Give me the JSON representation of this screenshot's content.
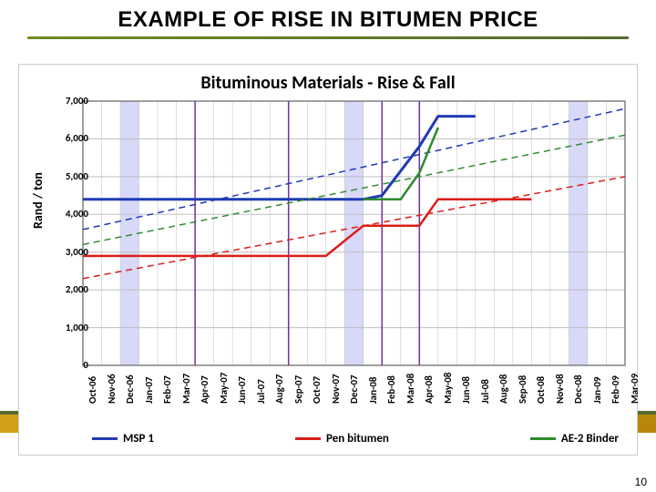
{
  "slide": {
    "title": "EXAMPLE OF RISE IN BITUMEN PRICE",
    "page_number": "10"
  },
  "chart": {
    "type": "line",
    "title": "Bituminous Materials - Rise & Fall",
    "title_fontsize": 20,
    "ylabel": "Rand / ton",
    "label_fontsize": 14,
    "tick_fontsize": 11,
    "background_color": "#ffffff",
    "grid_color": "#bfbfbf",
    "axis_color": "#808080",
    "ylim": [
      0,
      7000
    ],
    "ytick_step": 1000,
    "yticks": [
      "0",
      "1,000",
      "2,000",
      "3,000",
      "4,000",
      "5,000",
      "6,000",
      "7,000"
    ],
    "x_categories": [
      "Oct-06",
      "Nov-06",
      "Dec-06",
      "Jan-07",
      "Feb-07",
      "Mar-07",
      "Apr-07",
      "May-07",
      "Jun-07",
      "Jul-07",
      "Aug-07",
      "Sep-07",
      "Oct-07",
      "Nov-07",
      "Dec-07",
      "Jan-08",
      "Feb-08",
      "Mar-08",
      "Apr-08",
      "May-08",
      "Jun-08",
      "Jul-08",
      "Aug-08",
      "Sep-08",
      "Oct-08",
      "Nov-08",
      "Dec-08",
      "Jan-09",
      "Feb-09",
      "Mar-09"
    ],
    "vband_color": "#d8d8f8",
    "vbands": [
      [
        2,
        3
      ],
      [
        14,
        15
      ],
      [
        26,
        27
      ]
    ],
    "vlines": {
      "color": "#7030a0",
      "width": 1.5,
      "positions": [
        6,
        11,
        16,
        18
      ]
    },
    "series": [
      {
        "name": "MSP 1",
        "color": "#1f3bb3",
        "solid_width": 3,
        "dash_width": 1.5,
        "solid": [
          [
            0,
            4400
          ],
          [
            15,
            4400
          ],
          [
            16,
            4500
          ],
          [
            18,
            5800
          ],
          [
            19,
            6600
          ],
          [
            21,
            6600
          ]
        ],
        "dash": [
          [
            0,
            3600
          ],
          [
            29,
            6800
          ]
        ]
      },
      {
        "name": "Pen bitumen",
        "color": "#d91e18",
        "solid_width": 2.5,
        "dash_width": 1.5,
        "solid": [
          [
            0,
            2900
          ],
          [
            13,
            2900
          ],
          [
            15,
            3700
          ],
          [
            18,
            3700
          ],
          [
            19,
            4400
          ],
          [
            24,
            4400
          ]
        ],
        "dash": [
          [
            0,
            2300
          ],
          [
            29,
            5000
          ]
        ]
      },
      {
        "name": "AE-2 Binder",
        "color": "#2e8b2e",
        "solid_width": 2.5,
        "dash_width": 1.5,
        "solid": [
          [
            15,
            4400
          ],
          [
            17,
            4400
          ],
          [
            18,
            5100
          ],
          [
            19,
            6300
          ]
        ],
        "dash": [
          [
            0,
            3200
          ],
          [
            29,
            6100
          ]
        ]
      }
    ],
    "legend": {
      "position": "bottom"
    }
  }
}
